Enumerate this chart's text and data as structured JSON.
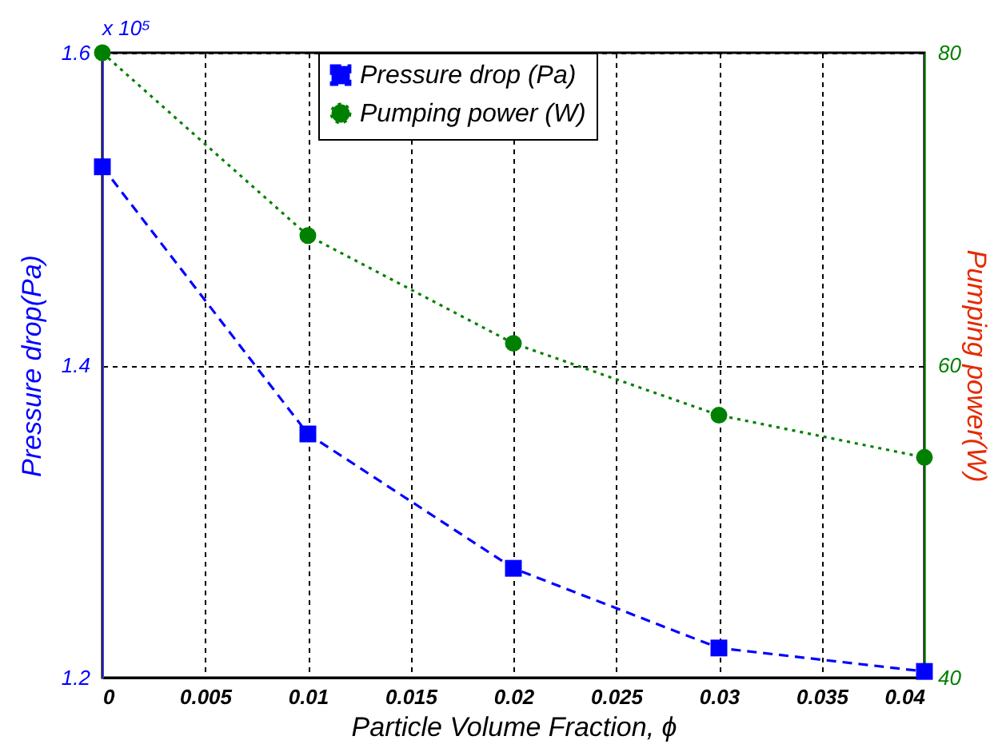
{
  "chart_data": {
    "type": "line",
    "xlabel": "Particle Volume Fraction, ϕ",
    "ylabel": "Pressure drop(Pa)",
    "y2label": "Pumping power(W)",
    "annotations": [
      "x 10⁵"
    ],
    "x": [
      0,
      0.01,
      0.02,
      0.03,
      0.04
    ],
    "series": [
      {
        "name": "Pressure drop (Pa)",
        "color": "#0000ff",
        "marker": "square",
        "line_style": "dashed",
        "values": [
          1.527,
          1.356,
          1.27,
          1.219,
          1.204
        ]
      },
      {
        "name": "Pumping power (W)",
        "color": "#008000",
        "marker": "circle",
        "line_style": "dotted",
        "axis": "y2",
        "values": [
          80,
          68.3,
          61.4,
          56.8,
          54.1
        ]
      }
    ],
    "xlim": [
      0,
      0.04
    ],
    "xticks": [
      0,
      0.005,
      0.01,
      0.015,
      0.02,
      0.025,
      0.03,
      0.035,
      0.04
    ],
    "ylim": [
      1.2,
      1.6
    ],
    "yticks": [
      1.2,
      1.4,
      1.6
    ],
    "y2lim": [
      40,
      80
    ],
    "y2ticks": [
      40,
      60,
      80
    ],
    "grid": true,
    "legend": "top"
  }
}
